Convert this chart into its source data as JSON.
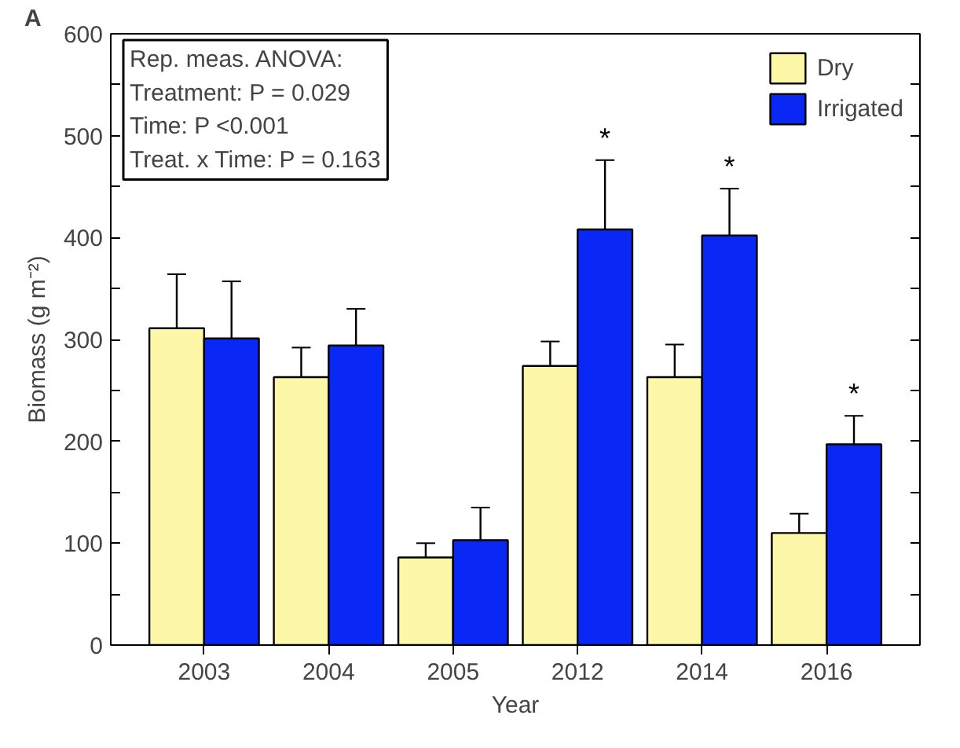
{
  "chart_data": {
    "type": "bar",
    "xlabel": "Year",
    "ylabel": "Biomass (g m⁻²)",
    "categories": [
      "2003",
      "2004",
      "2005",
      "2012",
      "2014",
      "2016"
    ],
    "series": [
      {
        "name": "Dry",
        "color": "#fcf8a8",
        "values": [
          311,
          263,
          86,
          274,
          263,
          110
        ],
        "errors": [
          [
            311,
            364
          ],
          [
            263,
            292
          ],
          [
            86,
            100
          ],
          [
            274,
            298
          ],
          [
            263,
            295
          ],
          [
            110,
            129
          ]
        ]
      },
      {
        "name": "Irrigated",
        "color": "#0a28f5",
        "values": [
          301,
          294,
          103,
          408,
          402,
          197
        ],
        "value_labels": [
          null,
          null,
          null,
          "*",
          "*",
          "*"
        ],
        "errors": [
          [
            301,
            357
          ],
          [
            294,
            330
          ],
          [
            103,
            135
          ],
          [
            408,
            476
          ],
          [
            402,
            448
          ],
          [
            197,
            225
          ]
        ]
      }
    ],
    "ylim": [
      0,
      600
    ],
    "yticks": [
      0,
      {
        "value": 50,
        "label": null
      },
      100,
      {
        "value": 150,
        "label": null
      },
      200,
      {
        "value": 250,
        "label": null
      },
      300,
      {
        "value": 350,
        "label": null
      },
      400,
      {
        "value": 450,
        "label": null
      },
      500,
      {
        "value": 550,
        "label": null
      },
      600
    ],
    "grid": false,
    "legend": "top right",
    "annotations": [
      "A",
      "Rep. meas. ANOVA:",
      "Treatment:  P = 0.029",
      "Time:  P <0.001",
      "Treat. x Time: P = 0.163"
    ]
  }
}
